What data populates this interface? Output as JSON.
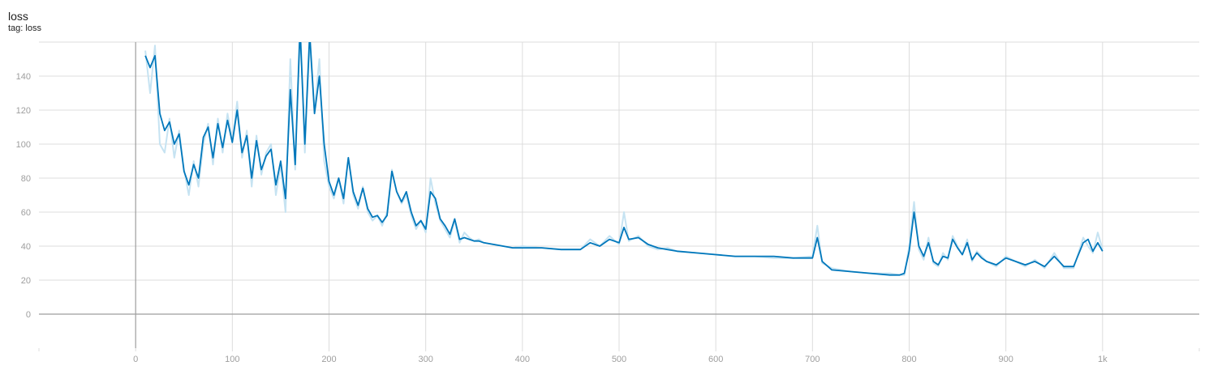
{
  "card": {
    "title": "loss",
    "subtitle": "tag: loss"
  },
  "colors": {
    "smoothed": "#0077bb",
    "raw": "#c6e3f2",
    "grid": "#dcdcdc",
    "axis": "#9e9e9e"
  },
  "chart_data": {
    "type": "line",
    "title": "loss",
    "xlabel": "",
    "ylabel": "",
    "xlim": [
      -100,
      1100
    ],
    "ylim": [
      -20,
      160
    ],
    "grid": true,
    "x_ticks": [
      0,
      100,
      200,
      300,
      400,
      500,
      600,
      700,
      800,
      900,
      1000
    ],
    "x_tick_labels": [
      "0",
      "100",
      "200",
      "300",
      "400",
      "500",
      "600",
      "700",
      "800",
      "900",
      "1k"
    ],
    "y_ticks": [
      0,
      20,
      40,
      60,
      80,
      100,
      120,
      140
    ],
    "y_tick_labels": [
      "0",
      "20",
      "40",
      "60",
      "80",
      "100",
      "120",
      "140"
    ],
    "series": [
      {
        "role": "raw",
        "x": [
          10,
          15,
          20,
          25,
          30,
          35,
          40,
          45,
          50,
          55,
          60,
          65,
          70,
          75,
          80,
          85,
          90,
          95,
          100,
          105,
          110,
          115,
          120,
          125,
          130,
          135,
          140,
          145,
          150,
          155,
          160,
          165,
          170,
          175,
          180,
          185,
          190,
          195,
          200,
          205,
          210,
          215,
          220,
          225,
          230,
          235,
          240,
          245,
          250,
          255,
          260,
          265,
          270,
          275,
          280,
          285,
          290,
          295,
          300,
          305,
          310,
          315,
          320,
          325,
          330,
          335,
          340,
          345,
          350,
          355,
          360,
          370,
          380,
          390,
          400,
          420,
          440,
          460,
          470,
          480,
          490,
          500,
          505,
          510,
          520,
          530,
          540,
          550,
          560,
          580,
          600,
          620,
          640,
          660,
          680,
          700,
          705,
          710,
          720,
          740,
          760,
          780,
          790,
          795,
          800,
          805,
          810,
          815,
          820,
          825,
          830,
          835,
          840,
          845,
          850,
          855,
          860,
          865,
          870,
          875,
          880,
          890,
          900,
          910,
          920,
          930,
          940,
          950,
          960,
          970,
          980,
          985,
          990,
          995,
          1000
        ],
        "y": [
          155,
          130,
          158,
          100,
          95,
          115,
          92,
          108,
          85,
          70,
          90,
          75,
          100,
          112,
          88,
          115,
          95,
          118,
          102,
          125,
          92,
          108,
          75,
          105,
          82,
          95,
          100,
          70,
          88,
          60,
          150,
          85,
          175,
          95,
          160,
          120,
          150,
          90,
          75,
          68,
          80,
          65,
          92,
          70,
          62,
          75,
          60,
          55,
          58,
          52,
          60,
          85,
          72,
          65,
          70,
          58,
          50,
          55,
          48,
          80,
          65,
          55,
          50,
          45,
          55,
          42,
          48,
          45,
          43,
          44,
          42,
          41,
          40,
          39,
          40,
          39,
          38,
          38,
          44,
          40,
          46,
          41,
          60,
          43,
          46,
          40,
          38,
          39,
          37,
          36,
          35,
          34,
          34,
          33,
          33,
          34,
          52,
          30,
          27,
          25,
          24,
          24,
          23,
          23,
          40,
          66,
          38,
          32,
          45,
          30,
          28,
          36,
          32,
          46,
          40,
          35,
          44,
          31,
          37,
          34,
          31,
          28,
          34,
          31,
          28,
          32,
          27,
          36,
          27,
          27,
          45,
          40,
          36,
          48,
          38
        ]
      },
      {
        "role": "smoothed",
        "x": [
          10,
          15,
          20,
          25,
          30,
          35,
          40,
          45,
          50,
          55,
          60,
          65,
          70,
          75,
          80,
          85,
          90,
          95,
          100,
          105,
          110,
          115,
          120,
          125,
          130,
          135,
          140,
          145,
          150,
          155,
          160,
          165,
          170,
          175,
          180,
          185,
          190,
          195,
          200,
          205,
          210,
          215,
          220,
          225,
          230,
          235,
          240,
          245,
          250,
          255,
          260,
          265,
          270,
          275,
          280,
          285,
          290,
          295,
          300,
          305,
          310,
          315,
          320,
          325,
          330,
          335,
          340,
          345,
          350,
          355,
          360,
          370,
          380,
          390,
          400,
          420,
          440,
          460,
          470,
          480,
          490,
          500,
          505,
          510,
          520,
          530,
          540,
          550,
          560,
          580,
          600,
          620,
          640,
          660,
          680,
          700,
          705,
          710,
          720,
          740,
          760,
          780,
          790,
          795,
          800,
          805,
          810,
          815,
          820,
          825,
          830,
          835,
          840,
          845,
          850,
          855,
          860,
          865,
          870,
          875,
          880,
          890,
          900,
          910,
          920,
          930,
          940,
          950,
          960,
          970,
          980,
          985,
          990,
          995,
          1000
        ],
        "y": [
          152,
          145,
          152,
          118,
          108,
          113,
          100,
          106,
          84,
          76,
          88,
          80,
          104,
          110,
          92,
          112,
          98,
          114,
          101,
          120,
          95,
          105,
          80,
          102,
          85,
          93,
          97,
          76,
          90,
          68,
          132,
          88,
          168,
          100,
          165,
          118,
          140,
          100,
          78,
          70,
          80,
          68,
          92,
          72,
          64,
          74,
          62,
          57,
          58,
          54,
          58,
          84,
          72,
          66,
          72,
          60,
          52,
          55,
          50,
          72,
          68,
          56,
          52,
          47,
          56,
          44,
          45,
          44,
          43,
          43,
          42,
          41,
          40,
          39,
          39,
          39,
          38,
          38,
          42,
          40,
          44,
          42,
          51,
          44,
          45,
          41,
          39,
          38,
          37,
          36,
          35,
          34,
          34,
          34,
          33,
          33,
          45,
          31,
          26,
          25,
          24,
          23,
          23,
          24,
          37,
          60,
          40,
          34,
          42,
          31,
          29,
          34,
          33,
          44,
          39,
          35,
          42,
          32,
          36,
          33,
          31,
          29,
          33,
          31,
          29,
          31,
          28,
          34,
          28,
          28,
          42,
          44,
          37,
          42,
          37
        ]
      }
    ]
  }
}
